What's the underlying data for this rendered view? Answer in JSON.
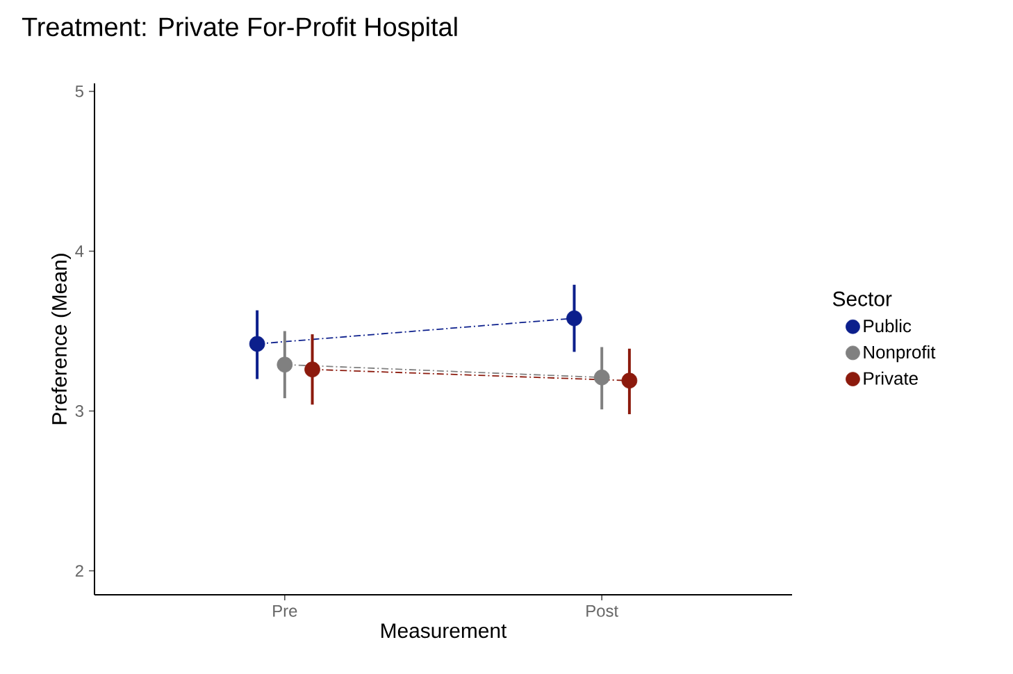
{
  "chart_data": {
    "type": "line",
    "title": "Treatment: Private For-Profit Hospital",
    "xlabel": "Measurement",
    "ylabel": "Preference (Mean)",
    "legend_title": "Sector",
    "categories": [
      "Pre",
      "Post"
    ],
    "ylim": [
      1.85,
      5.05
    ],
    "yticks": [
      2,
      3,
      4,
      5
    ],
    "grid": false,
    "legend": "right",
    "marker": "circle",
    "line_style": "dashed",
    "series": [
      {
        "name": "Public",
        "color": "#0c1f8c",
        "values": [
          3.42,
          3.58
        ],
        "errors": [
          [
            3.2,
            3.63
          ],
          [
            3.37,
            3.79
          ]
        ]
      },
      {
        "name": "Nonprofit",
        "color": "#808080",
        "values": [
          3.29,
          3.21
        ],
        "errors": [
          [
            3.08,
            3.5
          ],
          [
            3.01,
            3.4
          ]
        ]
      },
      {
        "name": "Private",
        "color": "#8c1a0d",
        "values": [
          3.26,
          3.19
        ],
        "errors": [
          [
            3.04,
            3.48
          ],
          [
            2.98,
            3.39
          ]
        ]
      }
    ]
  }
}
